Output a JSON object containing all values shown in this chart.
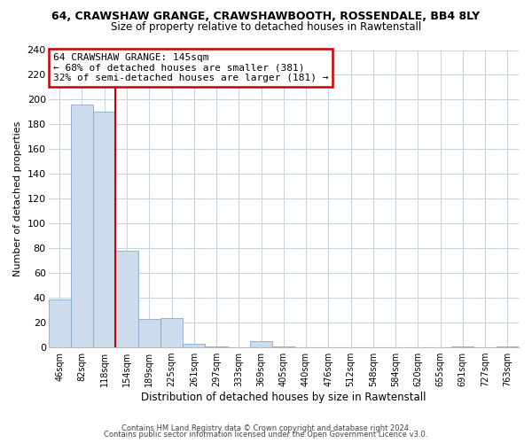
{
  "title_line1": "64, CRAWSHAW GRANGE, CRAWSHAWBOOTH, ROSSENDALE, BB4 8LY",
  "title_line2": "Size of property relative to detached houses in Rawtenstall",
  "xlabel": "Distribution of detached houses by size in Rawtenstall",
  "ylabel": "Number of detached properties",
  "bar_labels": [
    "46sqm",
    "82sqm",
    "118sqm",
    "154sqm",
    "189sqm",
    "225sqm",
    "261sqm",
    "297sqm",
    "333sqm",
    "369sqm",
    "405sqm",
    "440sqm",
    "476sqm",
    "512sqm",
    "548sqm",
    "584sqm",
    "620sqm",
    "655sqm",
    "691sqm",
    "727sqm",
    "763sqm"
  ],
  "bar_values": [
    39,
    196,
    190,
    78,
    23,
    24,
    3,
    1,
    0,
    5,
    1,
    0,
    0,
    0,
    0,
    0,
    0,
    0,
    1,
    0,
    1
  ],
  "bar_color": "#ccdcec",
  "bar_edge_color": "#88aacc",
  "vline_x": 2.5,
  "vline_color": "#cc0000",
  "ylim": [
    0,
    240
  ],
  "yticks": [
    0,
    20,
    40,
    60,
    80,
    100,
    120,
    140,
    160,
    180,
    200,
    220,
    240
  ],
  "annotation_title": "64 CRAWSHAW GRANGE: 145sqm",
  "annotation_line1": "← 68% of detached houses are smaller (381)",
  "annotation_line2": "32% of semi-detached houses are larger (181) →",
  "footnote1": "Contains HM Land Registry data © Crown copyright and database right 2024.",
  "footnote2": "Contains public sector information licensed under the Open Government Licence v3.0.",
  "background_color": "#ffffff",
  "grid_color": "#c8d4e0"
}
